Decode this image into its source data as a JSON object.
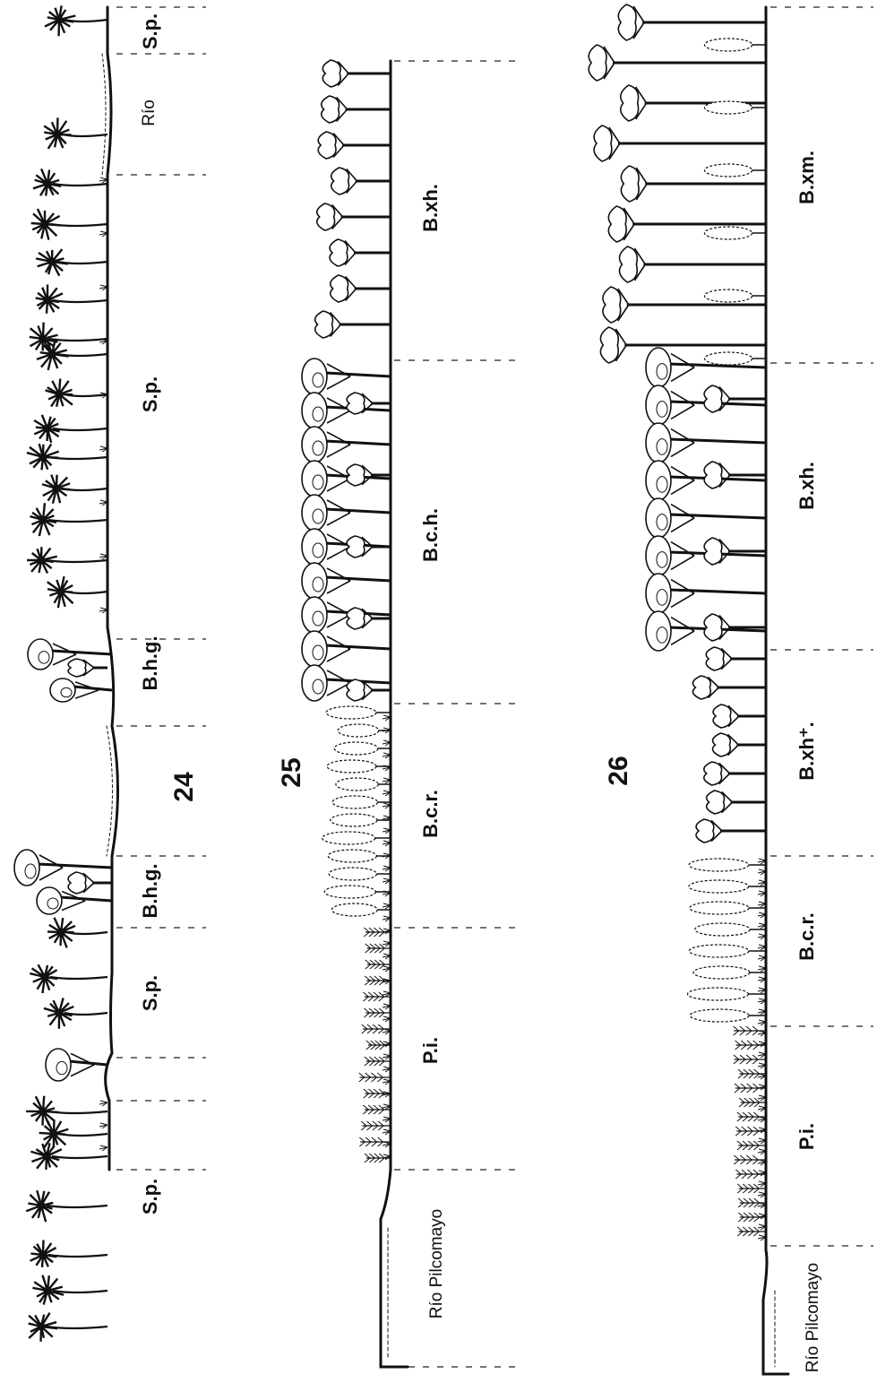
{
  "colors": {
    "ink": "#111111",
    "paper": "#ffffff"
  },
  "profiles": [
    {
      "number": "24",
      "zones": [
        "S.p.",
        "S.p.",
        "B.h.g.",
        "B.h.g.",
        "S.p.",
        "Río",
        "S.p."
      ],
      "river_label": "Río"
    },
    {
      "number": "25",
      "zones": [
        "Río Pilcomayo",
        "P.i.",
        "B.c.r.",
        "B.c.h.",
        "B.xh."
      ],
      "river_label": "Río Pilcomayo"
    },
    {
      "number": "26",
      "zones": [
        "Río Pilcomayo",
        "P.i.",
        "B.c.r.",
        "B.xh⁺.",
        "B.xh.",
        "B.xm."
      ],
      "river_label": "Río Pilcomayo"
    }
  ],
  "icons": [
    "palm-tree-icon",
    "broadleaf-tree-icon",
    "columnar-shrub-icon",
    "grass-tuft-icon"
  ]
}
